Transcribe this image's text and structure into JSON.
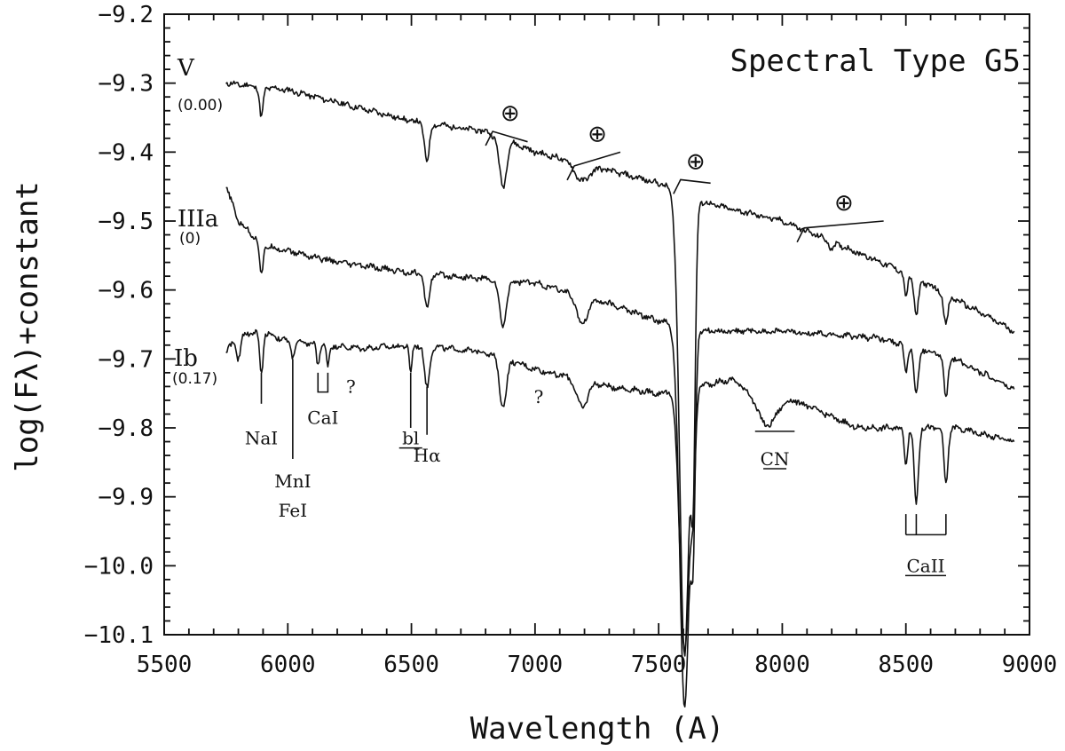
{
  "chart_data": {
    "type": "line",
    "title": "Spectral Type G5",
    "xlabel": "Wavelength (A)",
    "ylabel": "log(Fλ)+constant",
    "xlim": [
      5500,
      9000
    ],
    "ylim": [
      -10.1,
      -9.2
    ],
    "x_ticks": [
      5500,
      6000,
      6500,
      7000,
      7500,
      8000,
      8500,
      9000
    ],
    "x_tick_labels": [
      "5500",
      "6000",
      "6500",
      "7000",
      "7500",
      "8000",
      "8500",
      "9000"
    ],
    "y_ticks": [
      -9.2,
      -9.3,
      -9.4,
      -9.5,
      -9.6,
      -9.7,
      -9.8,
      -9.9,
      -10.0,
      -10.1
    ],
    "y_tick_labels": [
      "−9.2",
      "−9.3",
      "−9.4",
      "−9.5",
      "−9.6",
      "−9.7",
      "−9.8",
      "−9.9",
      "−10.0",
      "−10.1"
    ],
    "grid": false,
    "series": [
      {
        "name": "V",
        "ebv": "(0.00)",
        "continuum": [
          [
            5750,
            -9.3
          ],
          [
            6000,
            -9.31
          ],
          [
            6500,
            -9.355
          ],
          [
            6800,
            -9.37
          ],
          [
            7000,
            -9.4
          ],
          [
            7500,
            -9.445
          ],
          [
            7700,
            -9.475
          ],
          [
            8000,
            -9.5
          ],
          [
            8500,
            -9.575
          ],
          [
            8940,
            -9.66
          ]
        ],
        "absorption": [
          [
            5893,
            -0.045,
            10
          ],
          [
            6563,
            -0.055,
            14
          ],
          [
            6870,
            -0.07,
            20
          ],
          [
            7190,
            -0.025,
            40
          ],
          [
            7605,
            -0.67,
            28
          ],
          [
            7640,
            -0.32,
            12
          ],
          [
            8198,
            -0.01,
            15
          ],
          [
            8500,
            -0.035,
            10
          ],
          [
            8542,
            -0.055,
            12
          ],
          [
            8662,
            -0.045,
            12
          ]
        ]
      },
      {
        "name": "IIIa",
        "ebv": "(0)",
        "continuum": [
          [
            5750,
            -9.45
          ],
          [
            5800,
            -9.5
          ],
          [
            5900,
            -9.535
          ],
          [
            6200,
            -9.56
          ],
          [
            6500,
            -9.575
          ],
          [
            7000,
            -9.59
          ],
          [
            7300,
            -9.62
          ],
          [
            7500,
            -9.645
          ],
          [
            7700,
            -9.66
          ],
          [
            8000,
            -9.66
          ],
          [
            8400,
            -9.67
          ],
          [
            8700,
            -9.7
          ],
          [
            8940,
            -9.745
          ]
        ],
        "absorption": [
          [
            5893,
            -0.045,
            10
          ],
          [
            6563,
            -0.05,
            14
          ],
          [
            6870,
            -0.065,
            20
          ],
          [
            7190,
            -0.04,
            30
          ],
          [
            7605,
            -0.55,
            28
          ],
          [
            7640,
            -0.24,
            12
          ],
          [
            8500,
            -0.04,
            10
          ],
          [
            8542,
            -0.07,
            12
          ],
          [
            8662,
            -0.06,
            12
          ]
        ]
      },
      {
        "name": "Ib",
        "ebv": "(0.17)",
        "continuum": [
          [
            5750,
            -9.69
          ],
          [
            5800,
            -9.665
          ],
          [
            5900,
            -9.66
          ],
          [
            6000,
            -9.675
          ],
          [
            6300,
            -9.685
          ],
          [
            6500,
            -9.68
          ],
          [
            6800,
            -9.69
          ],
          [
            7000,
            -9.715
          ],
          [
            7300,
            -9.74
          ],
          [
            7500,
            -9.75
          ],
          [
            7800,
            -9.73
          ],
          [
            7900,
            -9.755
          ],
          [
            8050,
            -9.76
          ],
          [
            8300,
            -9.8
          ],
          [
            8500,
            -9.8
          ],
          [
            8700,
            -9.8
          ],
          [
            8940,
            -9.82
          ]
        ],
        "absorption": [
          [
            5800,
            -0.035,
            12
          ],
          [
            5893,
            -0.06,
            10
          ],
          [
            6020,
            -0.02,
            10
          ],
          [
            6122,
            -0.03,
            8
          ],
          [
            6162,
            -0.03,
            8
          ],
          [
            6497,
            -0.04,
            8
          ],
          [
            6563,
            -0.06,
            14
          ],
          [
            6870,
            -0.07,
            20
          ],
          [
            7190,
            -0.04,
            30
          ],
          [
            7605,
            -0.38,
            28
          ],
          [
            7640,
            -0.12,
            12
          ],
          [
            7940,
            -0.04,
            50
          ],
          [
            8500,
            -0.05,
            10
          ],
          [
            8542,
            -0.11,
            12
          ],
          [
            8662,
            -0.08,
            12
          ]
        ]
      }
    ],
    "luminosity_labels": [
      {
        "class": "V",
        "ebv": "(0.00)"
      },
      {
        "class": "IIIa",
        "ebv": "(0)"
      },
      {
        "class": "Ib",
        "ebv": "(0.17)"
      }
    ],
    "telluric_bands": [
      {
        "x1": 6800,
        "y1": -9.37,
        "x2": 6970,
        "y2": -9.385,
        "symbol": "⊕"
      },
      {
        "x1": 7130,
        "y1": -9.42,
        "x2": 7345,
        "y2": -9.4,
        "symbol": "⊕"
      },
      {
        "x1": 7560,
        "y1": -9.44,
        "x2": 7710,
        "y2": -9.445,
        "symbol": "⊕"
      },
      {
        "x1": 8060,
        "y1": -9.51,
        "x2": 8410,
        "y2": -9.5,
        "symbol": "⊕"
      }
    ],
    "annotations": [
      {
        "text": "NaI",
        "x": 5893,
        "line_y_top": -9.72,
        "line_y_bottom": -9.765,
        "label_y": -9.815,
        "underline": false
      },
      {
        "text": "MnI",
        "x": 6020,
        "line_y_top": -9.7,
        "line_y_bottom": -9.845,
        "label_y": -9.877,
        "underline": false
      },
      {
        "text": "FeI",
        "x": 6020,
        "line_y_top": null,
        "line_y_bottom": null,
        "label_y": -9.92,
        "underline": false
      },
      {
        "text": "CaI",
        "x": 6142,
        "label_y": -9.785,
        "underline": false,
        "bracket": [
          6122,
          6162
        ],
        "bracket_y_top": -9.72,
        "bracket_y_bottom": -9.748
      },
      {
        "text": "?",
        "x": 6255,
        "label_y": -9.74,
        "underline": false
      },
      {
        "text": "bl",
        "x": 6497,
        "line_y_top": -9.72,
        "line_y_bottom": -9.8,
        "label_y": -9.815,
        "underline": true
      },
      {
        "text": "Hα",
        "x": 6563,
        "line_y_top": -9.74,
        "line_y_bottom": -9.81,
        "label_y": -9.84,
        "underline": false
      },
      {
        "text": "?",
        "x": 7015,
        "label_y": -9.755,
        "underline": false
      },
      {
        "text": "CN",
        "x": 7970,
        "label_y": -9.845,
        "underline": true,
        "band": [
          7890,
          8050
        ],
        "band_y": -9.805
      },
      {
        "text": "CaII",
        "x": 8580,
        "label_y": -10.0,
        "underline": true,
        "bracket_ticks": [
          8500,
          8542,
          8662
        ],
        "bracket_y_top": -9.925,
        "bracket_y_bottom": -9.955
      }
    ]
  }
}
